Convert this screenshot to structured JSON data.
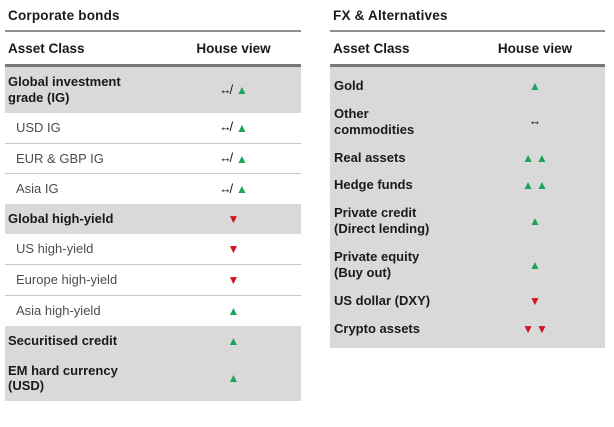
{
  "colors": {
    "up": "#1fa35c",
    "down": "#d2101e",
    "neutral": "#111111",
    "crossed_neutral": "#111111",
    "row_background": "#d9d9d9",
    "rule_gray": "#787878"
  },
  "symbols": {
    "up": "▲",
    "down": "▼",
    "neutral": "↔",
    "crossed_neutral": "↔/"
  },
  "chart_data": [
    {
      "type": "table",
      "title": "Corporate bonds",
      "columns": [
        "Asset Class",
        "House view"
      ],
      "rows": [
        {
          "label": "Global investment\ngrade (IG)",
          "row_style": "group",
          "view": [
            "crossed_neutral",
            "up"
          ]
        },
        {
          "label": "USD IG",
          "row_style": "sub",
          "view": [
            "crossed_neutral",
            "up"
          ]
        },
        {
          "label": "EUR & GBP IG",
          "row_style": "sub",
          "view": [
            "crossed_neutral",
            "up"
          ]
        },
        {
          "label": "Asia IG",
          "row_style": "sub",
          "view": [
            "crossed_neutral",
            "up"
          ]
        },
        {
          "label": "Global high-yield",
          "row_style": "group",
          "view": [
            "down"
          ]
        },
        {
          "label": "US high-yield",
          "row_style": "sub",
          "view": [
            "down"
          ]
        },
        {
          "label": "Europe high-yield",
          "row_style": "sub",
          "view": [
            "down"
          ]
        },
        {
          "label": "Asia high-yield",
          "row_style": "sub",
          "view": [
            "up"
          ]
        },
        {
          "label": "Securitised credit",
          "row_style": "group",
          "view": [
            "up"
          ]
        },
        {
          "label": "EM hard currency\n(USD)",
          "row_style": "group",
          "view": [
            "up"
          ]
        }
      ]
    },
    {
      "type": "table",
      "title": "FX & Alternatives",
      "columns": [
        "Asset Class",
        "House view"
      ],
      "rows": [
        {
          "label": "Gold",
          "row_style": "group",
          "view": [
            "up"
          ]
        },
        {
          "label": "Other\ncommodities",
          "row_style": "group",
          "view": [
            "neutral"
          ]
        },
        {
          "label": "Real assets",
          "row_style": "group",
          "view": [
            "up",
            "up"
          ]
        },
        {
          "label": "Hedge funds",
          "row_style": "group",
          "view": [
            "up",
            "up"
          ]
        },
        {
          "label": "Private credit\n(Direct lending)",
          "row_style": "group",
          "view": [
            "up"
          ]
        },
        {
          "label": "Private equity\n(Buy out)",
          "row_style": "group",
          "view": [
            "up"
          ]
        },
        {
          "label": "US dollar (DXY)",
          "row_style": "group",
          "view": [
            "down"
          ]
        },
        {
          "label": "Crypto assets",
          "row_style": "group",
          "view": [
            "down",
            "down"
          ]
        }
      ]
    }
  ]
}
